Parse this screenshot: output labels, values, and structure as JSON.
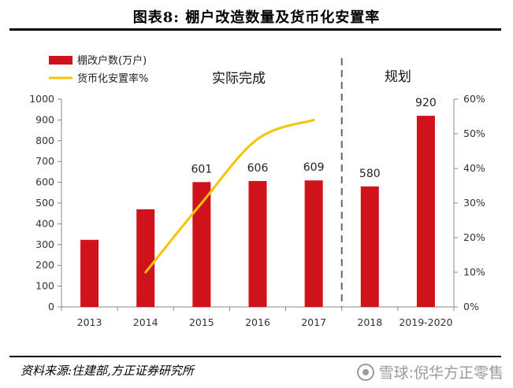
{
  "header": {
    "title": "图表8:   棚户改造数量及货币化安置率"
  },
  "source_note": "资料来源:住建部,方正证券研究所",
  "watermark": "雪球:倪华方正零售",
  "chart_data": {
    "type": "bar+line",
    "categories": [
      "2013",
      "2014",
      "2015",
      "2016",
      "2017",
      "2018",
      "2019-2020"
    ],
    "series": [
      {
        "name": "棚改户数(万户)",
        "kind": "bar",
        "axis": "left",
        "color": "#d0121b",
        "values": [
          323,
          470,
          601,
          606,
          609,
          580,
          920
        ],
        "data_labels": [
          null,
          null,
          "601",
          "606",
          "609",
          "580",
          "920"
        ]
      },
      {
        "name": "货币化安置率%",
        "kind": "line",
        "axis": "right",
        "color": "#f5c400",
        "values": [
          null,
          10,
          30,
          48.5,
          54,
          null,
          null
        ]
      }
    ],
    "y_left": {
      "min": 0,
      "max": 1000,
      "step": 100,
      "ticks": [
        "0",
        "100",
        "200",
        "300",
        "400",
        "500",
        "600",
        "700",
        "800",
        "900",
        "1000"
      ]
    },
    "y_right": {
      "min": 0,
      "max": 60,
      "step": 10,
      "ticks": [
        "0%",
        "10%",
        "20%",
        "30%",
        "40%",
        "50%",
        "60%"
      ]
    },
    "annotations": {
      "completed": "实际完成",
      "planned": "规划"
    },
    "legend": {
      "placement": "top-left"
    }
  }
}
